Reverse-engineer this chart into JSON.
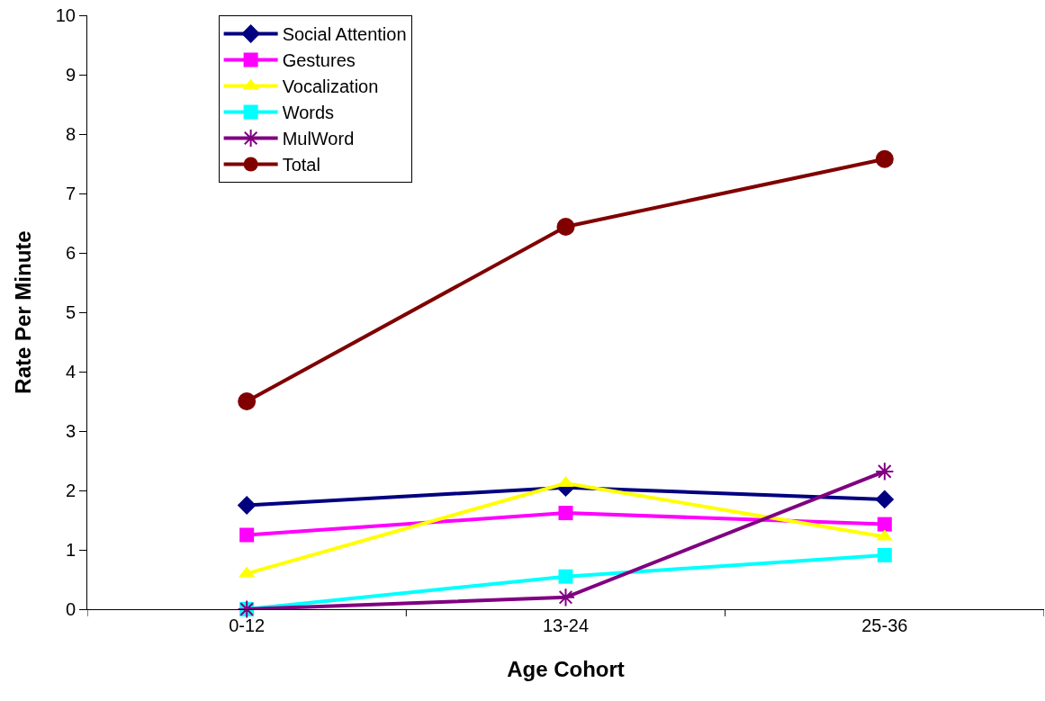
{
  "chart_data": {
    "type": "line",
    "xlabel": "Age Cohort",
    "ylabel": "Rate Per Minute",
    "categories": [
      "0-12",
      "13-24",
      "25-36"
    ],
    "series": [
      {
        "name": "Social Attention",
        "color": "#000080",
        "marker": "diamond",
        "values": [
          1.75,
          2.05,
          1.85
        ]
      },
      {
        "name": "Gestures",
        "color": "#ff00ff",
        "marker": "square",
        "values": [
          1.25,
          1.62,
          1.43
        ]
      },
      {
        "name": "Vocalization",
        "color": "#ffff00",
        "marker": "triangle",
        "values": [
          0.6,
          2.12,
          1.22
        ]
      },
      {
        "name": "Words",
        "color": "#00ffff",
        "marker": "square",
        "values": [
          0,
          0.55,
          0.91
        ]
      },
      {
        "name": "MulWord",
        "color": "#800080",
        "marker": "cross",
        "values": [
          0,
          0.2,
          2.32
        ]
      },
      {
        "name": "Total",
        "color": "#800000",
        "marker": "circle",
        "values": [
          3.5,
          6.44,
          7.58
        ]
      }
    ],
    "ylim": [
      0,
      10
    ],
    "yticks": [
      0,
      1,
      2,
      3,
      4,
      5,
      6,
      7,
      8,
      9,
      10
    ],
    "grid": false,
    "legend": "top left",
    "line_style": "solid"
  }
}
